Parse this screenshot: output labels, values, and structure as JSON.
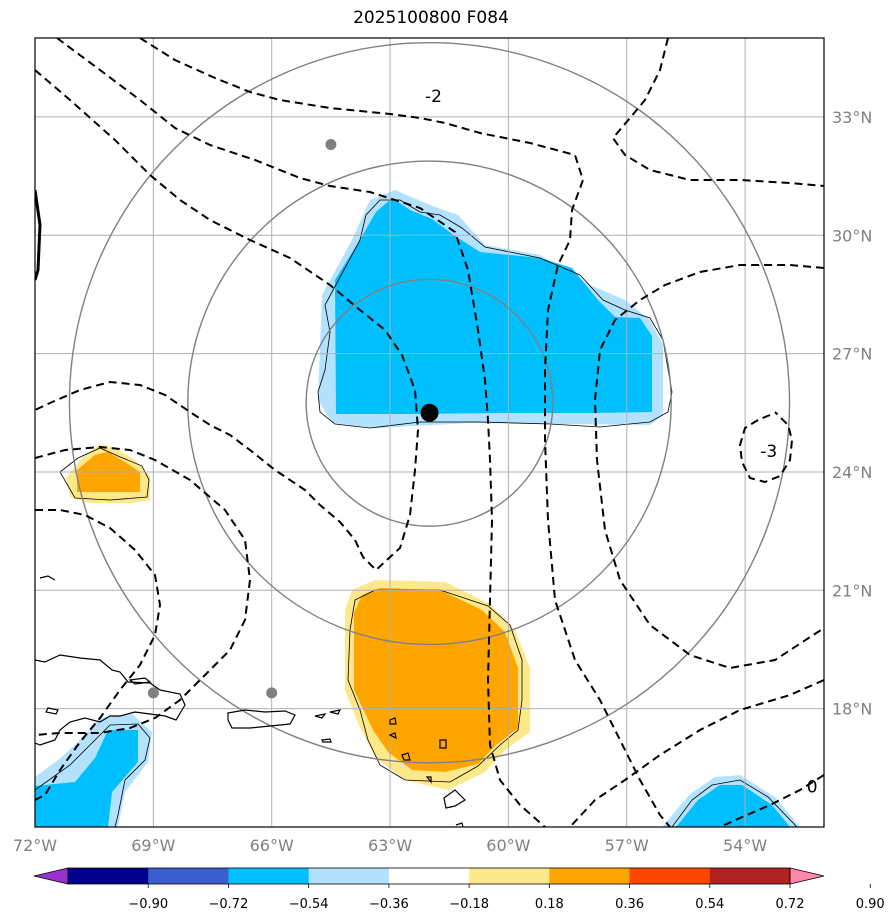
{
  "title": "2025100800 F084",
  "colors": {
    "grid": "#b0b0b0",
    "range_ring": "#808080",
    "neg_strong": "#00bfff",
    "neg_weak": "#b3e2ff",
    "pos_weak": "#fee88c",
    "pos_strong": "#ffa500",
    "tick_text": "#808080"
  },
  "map": {
    "lon_range": [
      -72,
      -52
    ],
    "lat_range": [
      15,
      35
    ],
    "lon_ticks": [
      {
        "value": -72,
        "label": "72°W"
      },
      {
        "value": -69,
        "label": "69°W"
      },
      {
        "value": -66,
        "label": "66°W"
      },
      {
        "value": -63,
        "label": "63°W"
      },
      {
        "value": -60,
        "label": "60°W"
      },
      {
        "value": -57,
        "label": "57°W"
      },
      {
        "value": -54,
        "label": "54°W"
      }
    ],
    "lat_ticks": [
      {
        "value": 18,
        "label": "18°N"
      },
      {
        "value": 21,
        "label": "21°N"
      },
      {
        "value": 24,
        "label": "24°N"
      },
      {
        "value": 27,
        "label": "27°N"
      },
      {
        "value": 30,
        "label": "30°N"
      },
      {
        "value": 33,
        "label": "33°N"
      }
    ],
    "storm_center": {
      "lon": -62.0,
      "lat": 25.5
    },
    "range_rings_deg": [
      3,
      6,
      9
    ],
    "gray_markers": [
      {
        "lon": -64.5,
        "lat": 32.3
      },
      {
        "lon": -69.0,
        "lat": 18.4
      },
      {
        "lon": -66.0,
        "lat": 18.4
      }
    ],
    "contour_labels": [
      {
        "text": "-2",
        "lon": -61.9,
        "lat": 33.5
      },
      {
        "text": "-3",
        "lon": -53.4,
        "lat": 24.5
      },
      {
        "text": "0",
        "lon": -52.3,
        "lat": 16.0
      }
    ]
  },
  "colorbar": {
    "ticks": [
      "−0.90",
      "−0.72",
      "−0.54",
      "−0.36",
      "−0.18",
      "0.18",
      "0.36",
      "0.54",
      "0.72",
      "0.90"
    ],
    "colors": [
      "#9932cc",
      "#00008b",
      "#3a5fcd",
      "#00bfff",
      "#b3e2ff",
      "#ffffff",
      "#fee88c",
      "#ffa500",
      "#ff4500",
      "#b22222",
      "#ff88aa"
    ]
  }
}
